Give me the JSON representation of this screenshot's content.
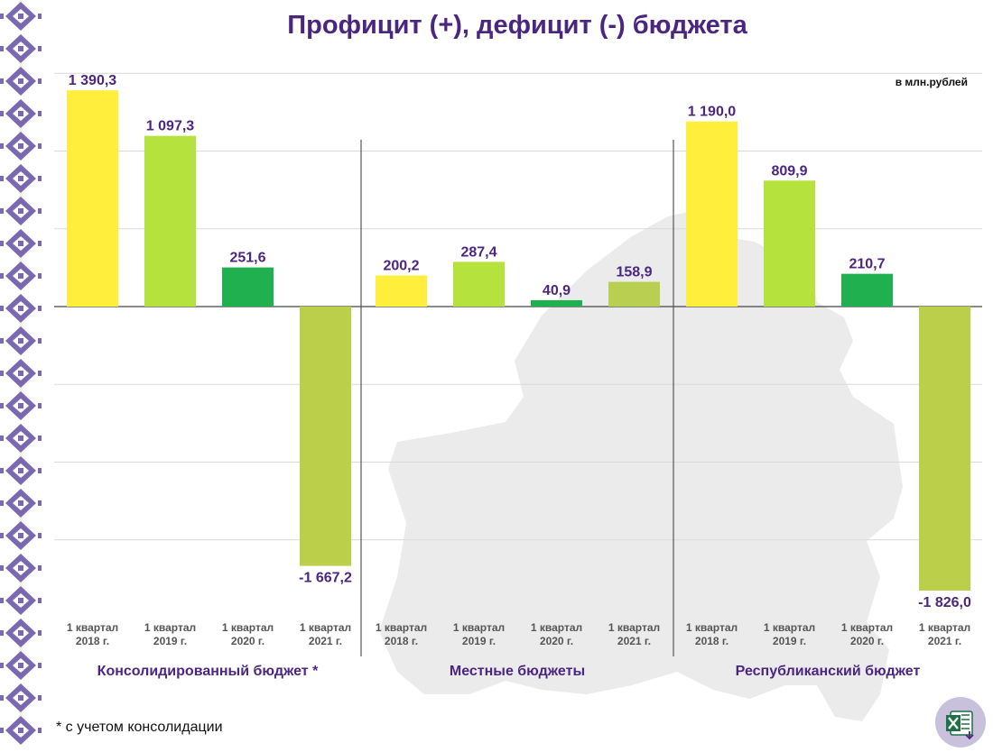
{
  "title": "Профицит (+), дефицит (-) бюджета",
  "units": "в млн.рублей",
  "footnote": "* с учетом консолидации",
  "excel_icon": "excel-icon",
  "colors": {
    "title": "#4b2680",
    "bar_2018": "#ffef3c",
    "bar_2019": "#b5e23c",
    "bar_2020": "#21b04f",
    "bar_2021": "#bccf4a",
    "bar_2021_local": "#b9cf52",
    "ornament": "#7b68b2"
  },
  "chart_data": {
    "type": "bar",
    "ylim": [
      -1900,
      1650
    ],
    "grid": true,
    "categories": [
      "1 квартал\n2018 г.",
      "1 квартал\n2019 г.",
      "1 квартал\n2020 г.",
      "1 квартал\n2021 г."
    ],
    "groups": [
      {
        "name": "Консолидированный бюджет *",
        "values": [
          1390.3,
          1097.3,
          251.6,
          -1667.2
        ],
        "value_labels": [
          "1 390,3",
          "1 097,3",
          "251,6",
          "-1 667,2"
        ]
      },
      {
        "name": "Местные бюджеты",
        "values": [
          200.2,
          287.4,
          40.9,
          158.9
        ],
        "value_labels": [
          "200,2",
          "287,4",
          "40,9",
          "158,9"
        ]
      },
      {
        "name": "Республиканский бюджет",
        "values": [
          1190.0,
          809.9,
          210.7,
          -1826.0
        ],
        "value_labels": [
          "1 190,0",
          "809,9",
          "210,7",
          "-1 826,0"
        ]
      }
    ]
  }
}
